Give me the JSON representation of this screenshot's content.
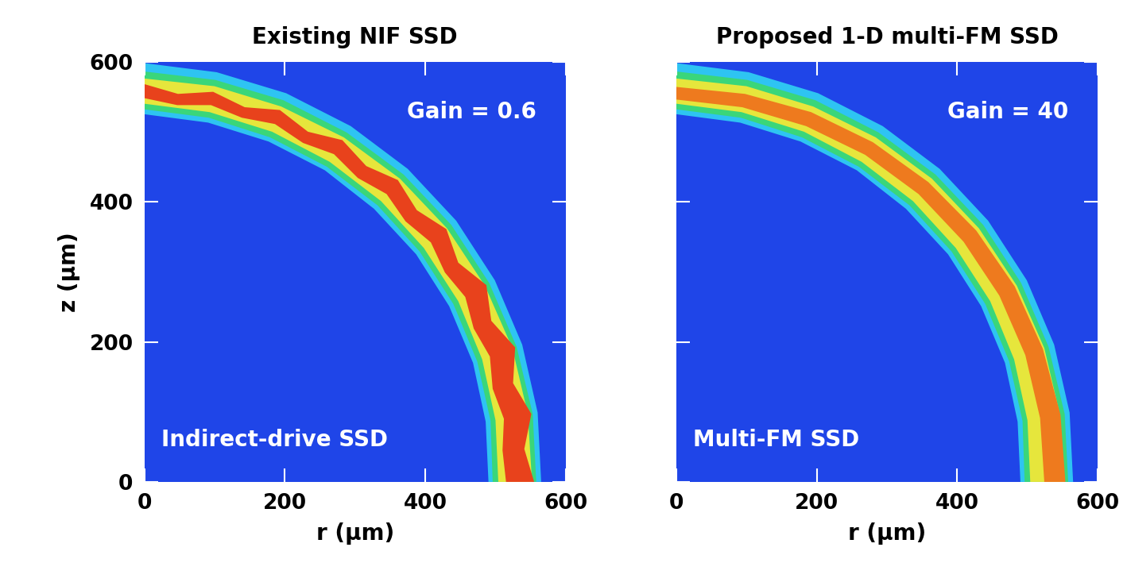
{
  "chart_data": [
    {
      "type": "image",
      "title": "Existing NIF SSD",
      "x_label": "r (μm)",
      "y_label": "z (μm)",
      "xlim": [
        0,
        600
      ],
      "ylim": [
        0,
        600
      ],
      "xticks": [
        0,
        200,
        400,
        600
      ],
      "yticks": [
        0,
        200,
        400,
        600
      ],
      "tick_labels": true,
      "color": "#1f45e8",
      "annotations": [
        "Gain = 0.6",
        "Indirect-drive SSD"
      ],
      "layers": [
        {
          "color": "#2ec4f2",
          "outer": {
            "r": [
              0,
              103,
              202,
              294,
              375,
              444,
              499,
              538,
              560,
              565
            ],
            "z": [
              598,
              585,
              555,
              508,
              447,
              373,
              288,
              196,
              99,
              0
            ]
          },
          "inner": {
            "r": [
              0,
              91,
              177,
              257,
              327,
              387,
              434,
              468,
              486,
              490
            ],
            "z": [
              525,
              513,
              486,
              445,
              390,
              325,
              251,
              170,
              86,
              0
            ]
          }
        },
        {
          "color": "#3ad67a",
          "outer": {
            "r": [
              0,
              101,
              198,
              288,
              369,
              437,
              491,
              530,
              553,
              558
            ],
            "z": [
              586,
              574,
              545,
              499,
              439,
              367,
              284,
              193,
              97,
              0
            ]
          },
          "inner": {
            "r": [
              0,
              92,
              179,
              260,
              332,
              392,
              440,
              474,
              493,
              496
            ],
            "z": [
              532,
              520,
              492,
              450,
              395,
              329,
              254,
              172,
              87,
              0
            ]
          }
        },
        {
          "color": "#e6e63c",
          "outer": {
            "r": [
              0,
              100,
              195,
              284,
              364,
              431,
              485,
              524,
              546,
              552
            ],
            "z": [
              576,
              565,
              536,
              492,
              433,
              362,
              280,
              191,
              97,
              0
            ]
          },
          "inner": {
            "r": [
              0,
              93,
              182,
              264,
              337,
              398,
              447,
              481,
              500,
              504
            ],
            "z": [
              540,
              528,
              500,
              457,
              401,
              334,
              258,
              175,
              88,
              0
            ]
          }
        },
        {
          "color": "#e8421c",
          "outer": {
            "r": [
              0,
              48,
              98,
              143,
              193,
              233,
              282,
              316,
              361,
              388,
              430,
              447,
              487,
              494,
              528,
              525,
              551,
              541,
              555
            ],
            "z": [
              568,
              554,
              557,
              535,
              531,
              500,
              488,
              451,
              431,
              388,
              361,
              313,
              281,
              230,
              192,
              141,
              97,
              47,
              0
            ]
          },
          "inner": {
            "r": [
              0,
              47,
              95,
              139,
              186,
              226,
              270,
              304,
              345,
              372,
              408,
              428,
              457,
              469,
              492,
              496,
              512,
              510,
              515
            ],
            "z": [
              548,
              538,
              538,
              520,
              511,
              484,
              468,
              434,
              411,
              372,
              342,
              299,
              264,
              219,
              179,
              133,
              90,
              45,
              0
            ]
          }
        }
      ]
    },
    {
      "type": "image",
      "title": "Proposed 1-D multi-FM SSD",
      "x_label": "r (μm)",
      "xlim": [
        0,
        600
      ],
      "ylim": [
        0,
        600
      ],
      "xticks": [
        0,
        200,
        400,
        600
      ],
      "yticks": [
        0,
        200,
        400,
        600
      ],
      "tick_labels": "x",
      "color": "#1f45e8",
      "annotations": [
        "Gain = 40",
        "Multi-FM SSD"
      ],
      "layers": [
        {
          "color": "#2ec4f2",
          "outer": {
            "r": [
              0,
              103,
              202,
              294,
              375,
              444,
              499,
              538,
              560,
              565
            ],
            "z": [
              598,
              585,
              555,
              508,
              447,
              373,
              288,
              196,
              99,
              0
            ]
          },
          "inner": {
            "r": [
              0,
              91,
              177,
              257,
              327,
              387,
              434,
              468,
              486,
              490
            ],
            "z": [
              525,
              513,
              486,
              445,
              390,
              325,
              251,
              170,
              86,
              0
            ]
          }
        },
        {
          "color": "#3ad67a",
          "outer": {
            "r": [
              0,
              101,
              198,
              288,
              369,
              437,
              491,
              530,
              553,
              558
            ],
            "z": [
              586,
              574,
              545,
              499,
              439,
              367,
              284,
              193,
              97,
              0
            ]
          },
          "inner": {
            "r": [
              0,
              92,
              179,
              260,
              332,
              392,
              440,
              474,
              493,
              496
            ],
            "z": [
              532,
              520,
              492,
              450,
              395,
              329,
              254,
              172,
              87,
              0
            ]
          }
        },
        {
          "color": "#e6e63c",
          "outer": {
            "r": [
              0,
              100,
              195,
              284,
              364,
              431,
              485,
              524,
              546,
              552
            ],
            "z": [
              576,
              565,
              536,
              492,
              433,
              362,
              280,
              191,
              97,
              0
            ]
          },
          "inner": {
            "r": [
              0,
              93,
              182,
              264,
              337,
              398,
              447,
              481,
              500,
              504
            ],
            "z": [
              540,
              528,
              500,
              457,
              401,
              334,
              258,
              175,
              88,
              0
            ]
          }
        },
        {
          "color": "#ee7a1e",
          "outer": {
            "r": [
              0,
              98,
              192,
              280,
              359,
              427,
              482,
              522,
              547,
              554
            ],
            "z": [
              564,
              554,
              528,
              485,
              428,
              359,
              279,
              190,
              96,
              0
            ]
          },
          "inner": {
            "r": [
              0,
              94,
              185,
              269,
              345,
              409,
              460,
              497,
              518,
              524
            ],
            "z": [
              546,
              535,
              508,
              467,
              411,
              343,
              266,
              181,
              91,
              0
            ]
          }
        }
      ]
    }
  ]
}
